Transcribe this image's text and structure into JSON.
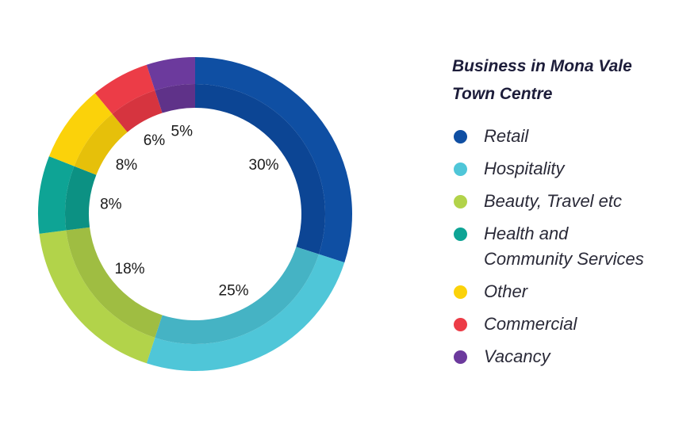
{
  "chart_data": {
    "type": "pie",
    "title": "Business in Mona Vale Town Centre",
    "title_lines": [
      "Business in Mona Vale",
      "Town Centre"
    ],
    "legend_position": "right",
    "series": [
      {
        "name": "Retail",
        "value": 30,
        "label": "30%",
        "color": "#0f4fa3",
        "inner_color": "#0c4594"
      },
      {
        "name": "Hospitality",
        "value": 25,
        "label": "25%",
        "color": "#4fc6d8",
        "inner_color": "#45b3c4"
      },
      {
        "name": "Beauty, Travel etc",
        "value": 18,
        "label": "18%",
        "color": "#b2d34a",
        "inner_color": "#9fbd42"
      },
      {
        "name": "Health and\nCommunity Services",
        "value": 8,
        "label": "8%",
        "color": "#0ea495",
        "inner_color": "#0c9183"
      },
      {
        "name": "Other",
        "value": 8,
        "label": "8%",
        "color": "#fbd20a",
        "inner_color": "#e6c00a"
      },
      {
        "name": "Commercial",
        "value": 6,
        "label": "6%",
        "color": "#ec3c47",
        "inner_color": "#d6343f"
      },
      {
        "name": "Vacancy",
        "value": 5,
        "label": "5%",
        "color": "#6c3a9d",
        "inner_color": "#5f3289"
      }
    ]
  }
}
